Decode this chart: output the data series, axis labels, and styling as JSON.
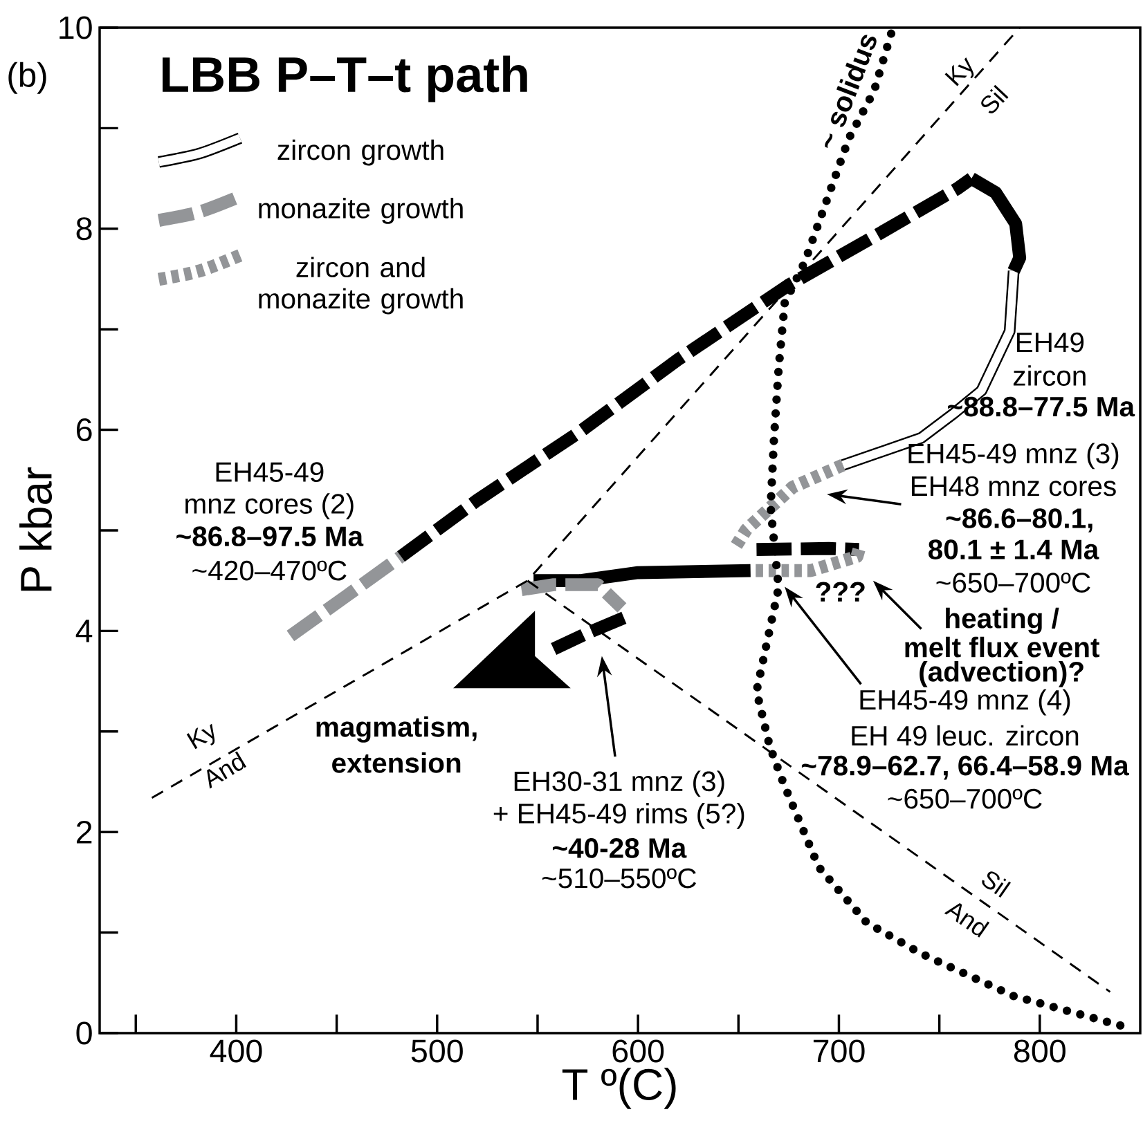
{
  "chart_data": {
    "type": "line",
    "title": "LBB P–T–t path",
    "xlabel": "T º(C)",
    "ylabel": "P kbar",
    "xlim": [
      332,
      850
    ],
    "ylim": [
      0,
      10
    ],
    "xticks": [
      {
        "value": 350,
        "label": null
      },
      400,
      {
        "value": 450,
        "label": null
      },
      500,
      {
        "value": 550,
        "label": null
      },
      600,
      {
        "value": 650,
        "label": null
      },
      700,
      {
        "value": 750,
        "label": null
      },
      800
    ],
    "yticks": [
      0,
      {
        "value": 1,
        "label": null
      },
      2,
      {
        "value": 3,
        "label": null
      },
      4,
      {
        "value": 5,
        "label": null
      },
      6,
      {
        "value": 7,
        "label": null
      },
      8,
      {
        "value": 9,
        "label": null
      },
      10
    ],
    "legend": "top left",
    "series": [
      {
        "name": "zircon growth",
        "color": "#000000",
        "line_style": "solid",
        "x": [
          787,
          785,
          771,
          757,
          741,
          702
        ],
        "values": [
          7.58,
          6.98,
          6.39,
          6.16,
          5.92,
          5.65
        ]
      },
      {
        "name": "monazite growth",
        "color": "#939598",
        "line_style": "dashed",
        "x": [
          427,
          455,
          482
        ],
        "values": [
          3.95,
          4.35,
          4.74
        ]
      },
      {
        "name": "zircon and monazite growth",
        "color": "#939598",
        "line_style": "dotted",
        "x": [
          702,
          677,
          654,
          648
        ],
        "values": [
          5.65,
          5.43,
          5.01,
          4.82
        ]
      },
      {
        "color": "#000000",
        "line_style": "dashed",
        "x": [
          482,
          520,
          571,
          620,
          675,
          720,
          759,
          766
        ],
        "values": [
          4.74,
          5.3,
          5.98,
          6.7,
          7.44,
          7.95,
          8.4,
          8.5
        ]
      },
      {
        "color": "#000000",
        "line_style": "solid",
        "x": [
          766,
          778,
          788,
          790,
          787
        ],
        "values": [
          8.5,
          8.36,
          8.05,
          7.71,
          7.58
        ]
      },
      {
        "color": "#000000",
        "line_style": "dashed",
        "x": [
          659,
          695,
          710
        ],
        "values": [
          4.81,
          4.82,
          4.81
        ]
      },
      {
        "color": "#939598",
        "line_style": "dotted",
        "x": [
          710,
          709,
          686,
          656
        ],
        "values": [
          4.81,
          4.74,
          4.6,
          4.6
        ]
      },
      {
        "color": "#000000",
        "line_style": "solid",
        "x": [
          656,
          600,
          571,
          548
        ],
        "values": [
          4.6,
          4.58,
          4.5,
          4.5
        ]
      },
      {
        "color": "#939598",
        "line_style": "dashed",
        "x": [
          542,
          558,
          580,
          592
        ],
        "values": [
          4.41,
          4.46,
          4.46,
          4.23
        ]
      },
      {
        "color": "#000000",
        "line_style": "dashed",
        "x": [
          593,
          575,
          558
        ],
        "values": [
          4.13,
          3.98,
          3.82
        ]
      },
      {
        "color": "#000000",
        "line_style": "dashed",
        "x": [
          358,
          545,
          790
        ],
        "values": [
          2.34,
          4.5,
          10
        ]
      },
      {
        "color": "#000000",
        "line_style": "dashed",
        "x": [
          545,
          835
        ],
        "values": [
          4.5,
          0.41
        ]
      },
      {
        "color": "#000000",
        "line_style": "dotted",
        "x": [
          726,
          717.5,
          705,
          683,
          673,
          670,
          667.7,
          666,
          670,
          659,
          665.6,
          672.5,
          690,
          713.8,
          741,
          786.8,
          843
        ],
        "values": [
          9.94,
          9.37,
          8.9,
          7.67,
          7.26,
          6.61,
          5.92,
          5.23,
          4.43,
          3.4,
          2.85,
          2.48,
          1.65,
          1.1,
          0.79,
          0.37,
          0.06
        ]
      }
    ],
    "annotations": [
      "(b)",
      "EH45-49",
      "mnz cores (2)",
      "~86.8–97.5 Ma",
      "~420–470ºC",
      "EH49",
      "zircon",
      "~88.8–77.5 Ma",
      "EH45-49 mnz (3)",
      "EH48 mnz cores",
      "~86.6–80.1,",
      "80.1 ± 1.4 Ma",
      "~650–700ºC",
      "???",
      "heating /",
      "melt flux event",
      "(advection)?",
      "EH45-49 mnz (4)",
      "EH 49 leuc. zircon",
      "~78.9–62.7, 66.4–58.9 Ma",
      "~650–700ºC",
      "magmatism,",
      "extension",
      "EH30-31 mnz (3)",
      "+ EH45-49 rims (5?)",
      "~40-28 Ma",
      "~510–550ºC",
      "Ky",
      "And",
      "Ky",
      "Sil",
      "Sil",
      "And",
      "~ solidus"
    ]
  }
}
